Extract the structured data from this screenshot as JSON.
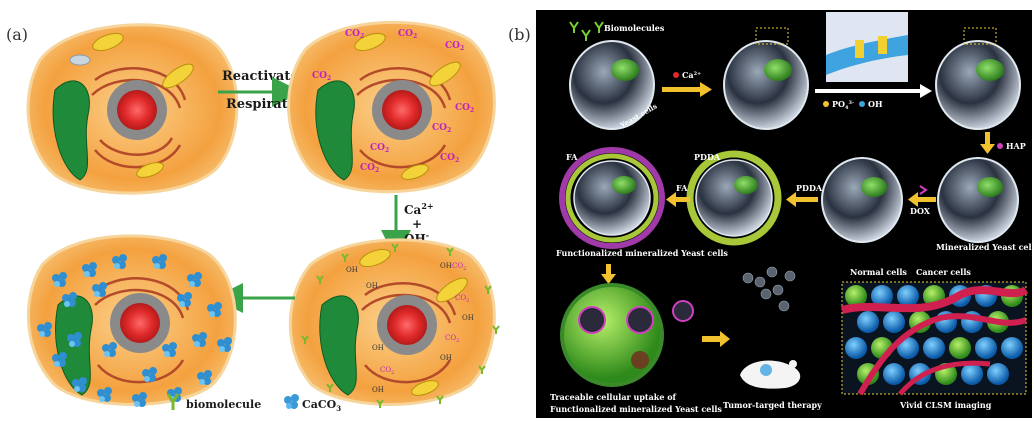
{
  "panel_a": {
    "label": "(a)",
    "arrow_top_line1": "Reactivated",
    "arrow_top_line2": "Respiration",
    "arrow_right_line1": "Ca",
    "arrow_right_sup1": "2+",
    "arrow_right_line2": "+",
    "arrow_right_line3": "OH",
    "arrow_right_sup3": "-",
    "co2": "CO",
    "co2_sub": "2",
    "oh": "OH",
    "legend_biomolecule": "biomolecule",
    "legend_caco3": "CaCO",
    "legend_caco3_sub": "3"
  },
  "panel_b": {
    "label": "(b)",
    "biomolecules": "Biomolecules",
    "yeast_cells": "Yeast cells",
    "ca2": "Ca",
    "ca2_sup": "2+",
    "po4": "PO",
    "po4_sub": "4",
    "po4_sup": "3-",
    "oh": "OH",
    "hap": "HAP",
    "dox": "DOX",
    "pdda_arrow": "PDDA",
    "pdda_ring": "PDDA",
    "fa_arrow": "FA",
    "fa_ring": "FA",
    "mineralized": "Mineralized Yeast cells",
    "functionalized": "Functionalized mineralized Yeast cells",
    "normal_cells": "Normal cells",
    "cancer_cells": "Cancer cells",
    "traceable_line1": "Traceable cellular uptake of",
    "traceable_line2": "Functionalized mineralized Yeast cells",
    "tumor": "Tumor-targed therapy",
    "clsm": "Vivid CLSM imaging"
  },
  "colors": {
    "cell_orange": "#f6a54a",
    "cell_edge": "#f0c070",
    "green_arrow": "#3aa34a",
    "nucleus": "#e03a3a",
    "vacuole": "#1f8a3a",
    "text_dark": "#1a1a1a",
    "panel_b_bg": "#000000",
    "yellow_arrow": "#f2c12e",
    "pdda_green": "#a8c83a",
    "fa_purple": "#a03aa8"
  }
}
